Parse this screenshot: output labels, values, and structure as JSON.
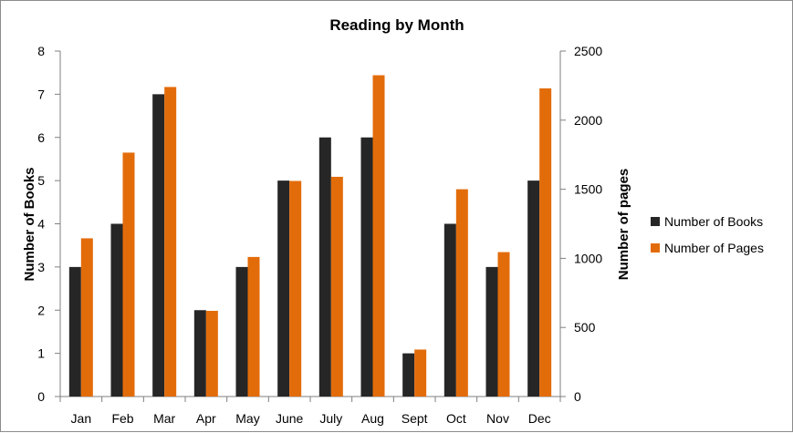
{
  "chart_data": {
    "type": "bar",
    "title": "Reading by Month",
    "categories": [
      "Jan",
      "Feb",
      "Mar",
      "Apr",
      "May",
      "June",
      "July",
      "Aug",
      "Sept",
      "Oct",
      "Nov",
      "Dec"
    ],
    "series": [
      {
        "name": "Number of Books",
        "axis": "left",
        "color": "#262626",
        "values": [
          3,
          4,
          7,
          2,
          3,
          5,
          6,
          6,
          1,
          4,
          3,
          5
        ]
      },
      {
        "name": "Number of Pages",
        "axis": "right",
        "color": "#e36c0a",
        "values": [
          1145,
          1765,
          2240,
          620,
          1010,
          1560,
          1590,
          2325,
          340,
          1500,
          1045,
          2230
        ]
      }
    ],
    "ylabel": "Number of Books",
    "y2label": "Number of pages",
    "ylim": [
      0,
      8
    ],
    "y2lim": [
      0,
      2500
    ],
    "yticks": [
      0,
      1,
      2,
      3,
      4,
      5,
      6,
      7,
      8
    ],
    "y2ticks": [
      0,
      500,
      1000,
      1500,
      2000,
      2500
    ],
    "grid": false,
    "legend_position": "right"
  }
}
